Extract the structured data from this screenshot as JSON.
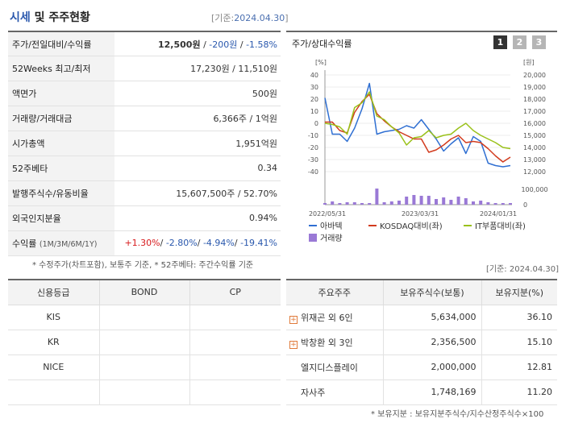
{
  "header": {
    "title_main": "시세",
    "title_rest": " 및 주주현황",
    "date_prefix": "[기준:",
    "date_value": "2024.04.30",
    "date_suffix": "]"
  },
  "quote": {
    "rows": [
      {
        "label": "주가/전일대비/수익률"
      },
      {
        "label": "52Weeks 최고/최저",
        "value": "17,230원 / 11,510원"
      },
      {
        "label": "액면가",
        "value": "500원"
      },
      {
        "label": "거래량/거래대금",
        "value": "6,366주 / 1억원"
      },
      {
        "label": "시가총액",
        "value": "1,951억원"
      },
      {
        "label": "52주베타",
        "value": "0.34"
      },
      {
        "label": "발행주식수/유동비율",
        "value": "15,607,500주 / 52.70%"
      },
      {
        "label": "외국인지분율",
        "value": "0.94%"
      },
      {
        "label": "수익률",
        "sub": "(1M/3M/6M/1Y)"
      }
    ],
    "price": "12,500원",
    "sep1": " / ",
    "change": "-200원",
    "sep2": " / ",
    "rate": "-1.58%",
    "ret_1m": "+1.30%",
    "ret_3m": "-2.80%",
    "ret_6m": "-4.94%",
    "ret_1y": "-19.41%",
    "ret_sep": "/ "
  },
  "note1": "* 수정주가(차트포함), 보통주 기준, * 52주베타: 주간수익률 기준",
  "chart_panel": {
    "title": "주가/상대수익률",
    "pages": [
      "1",
      "2",
      "3"
    ],
    "colors": {
      "page_active": "#333333",
      "page_inactive": "#b5b5b5"
    }
  },
  "chart_data": {
    "type": "line",
    "left_unit": "[%]",
    "right_unit": "[원]",
    "left_ticks": [
      "40",
      "30",
      "20",
      "10",
      "0",
      "-10",
      "-20",
      "-30",
      "-40"
    ],
    "right_ticks": [
      "20,000",
      "19,000",
      "18,000",
      "17,000",
      "16,000",
      "15,000",
      "14,000",
      "13,000",
      "12,000"
    ],
    "volume_ticks": [
      "100,000",
      "0"
    ],
    "x_labels": [
      "2022/05/31",
      "2023/03/31",
      "2024/01/31"
    ],
    "ylim_left": [
      -40,
      40
    ],
    "ylim_right": [
      12000,
      20000
    ],
    "series": [
      {
        "name": "아바텍",
        "color": "#2f6fd2",
        "values": [
          21,
          -9,
          -9,
          -15,
          -4,
          12,
          33,
          -9,
          -7,
          -6,
          -5,
          -2,
          -4,
          3,
          -5,
          -13,
          -23,
          -17,
          -12,
          -25,
          -11,
          -15,
          -33,
          -35,
          -36,
          -35
        ]
      },
      {
        "name": "KOSDAQ대비(좌)",
        "color": "#d23b1e",
        "values": [
          1,
          1,
          -6,
          -8,
          9,
          18,
          24,
          8,
          2,
          -3,
          -7,
          -10,
          -13,
          -13,
          -24,
          -22,
          -18,
          -13,
          -10,
          -16,
          -15,
          -16,
          -21,
          -27,
          -32,
          -28
        ]
      },
      {
        "name": "IT부품대비(좌)",
        "color": "#9ac11a",
        "values": [
          0,
          -1,
          -3,
          -9,
          13,
          17,
          26,
          6,
          3,
          -3,
          -8,
          -18,
          -12,
          -11,
          -6,
          -12,
          -10,
          -9,
          -4,
          0,
          -6,
          -10,
          -13,
          -16,
          -20,
          -21
        ]
      }
    ],
    "volume": {
      "name": "거래량",
      "color": "#9a79d6",
      "values": [
        2,
        4,
        2,
        3,
        3,
        2,
        2,
        20,
        3,
        4,
        5,
        10,
        12,
        11,
        11,
        7,
        9,
        6,
        10,
        8,
        4,
        5,
        3,
        2,
        2,
        2
      ]
    }
  },
  "credit": {
    "headers": [
      "신용등급",
      "BOND",
      "CP"
    ],
    "rows": [
      {
        "agency": "KIS",
        "bond": "",
        "cp": ""
      },
      {
        "agency": "KR",
        "bond": "",
        "cp": ""
      },
      {
        "agency": "NICE",
        "bond": "",
        "cp": ""
      },
      {
        "agency": "",
        "bond": "",
        "cp": ""
      }
    ]
  },
  "holders": {
    "date": "[기준: 2024.04.30]",
    "headers": [
      "주요주주",
      "보유주식수(보통)",
      "보유지분(%)"
    ],
    "rows": [
      {
        "name": "위재곤 외 6인",
        "shares": "5,634,000",
        "pct": "36.10",
        "expandable": true
      },
      {
        "name": "박창환 외 3인",
        "shares": "2,356,500",
        "pct": "15.10",
        "expandable": true
      },
      {
        "name": "엘지디스플레이",
        "shares": "2,000,000",
        "pct": "12.81",
        "expandable": false
      },
      {
        "name": "자사주",
        "shares": "1,748,169",
        "pct": "11.20",
        "expandable": false
      }
    ],
    "note": "* 보유지분 : 보유지분주식수/지수산정주식수×100"
  }
}
